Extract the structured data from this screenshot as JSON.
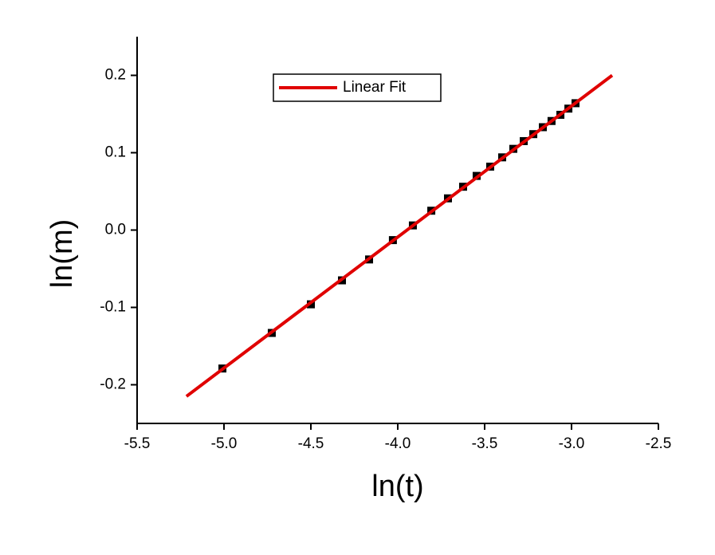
{
  "chart_data": {
    "type": "scatter",
    "x_label": "ln(t)",
    "y_label": "ln(m)",
    "xlim": [
      -5.5,
      -2.5
    ],
    "ylim": [
      -0.25,
      0.25
    ],
    "xticks": [
      -5.5,
      {
        "value": -5.0,
        "label": "-5.0"
      },
      -4.5,
      {
        "value": -4.0,
        "label": "-4.0"
      },
      -3.5,
      {
        "value": -3.0,
        "label": "-3.0"
      },
      -2.5
    ],
    "yticks": [
      -0.2,
      -0.1,
      {
        "value": 0.0,
        "label": "0.0"
      },
      0.1,
      0.2
    ],
    "legend": "top-left",
    "series": [
      {
        "type": "scatter",
        "color": "#000000",
        "x": [
          -5.009,
          -4.725,
          -4.5,
          -4.321,
          -4.165,
          -4.028,
          -3.913,
          -3.807,
          -3.711,
          -3.624,
          -3.546,
          -3.468,
          -3.399,
          -3.335,
          -3.275,
          -3.22,
          -3.165,
          -3.115,
          -3.064,
          -3.018,
          -2.977
        ],
        "values": [
          -0.179,
          -0.133,
          -0.096,
          -0.065,
          -0.038,
          -0.013,
          0.006,
          0.025,
          0.041,
          0.056,
          0.07,
          0.082,
          0.094,
          0.105,
          0.115,
          0.124,
          0.133,
          0.141,
          0.149,
          0.157,
          0.164
        ]
      },
      {
        "name": "Linear Fit",
        "type": "line",
        "color": "#e00000",
        "x": [
          -5.216,
          -2.766
        ],
        "values": [
          -0.215,
          0.2
        ]
      }
    ]
  }
}
